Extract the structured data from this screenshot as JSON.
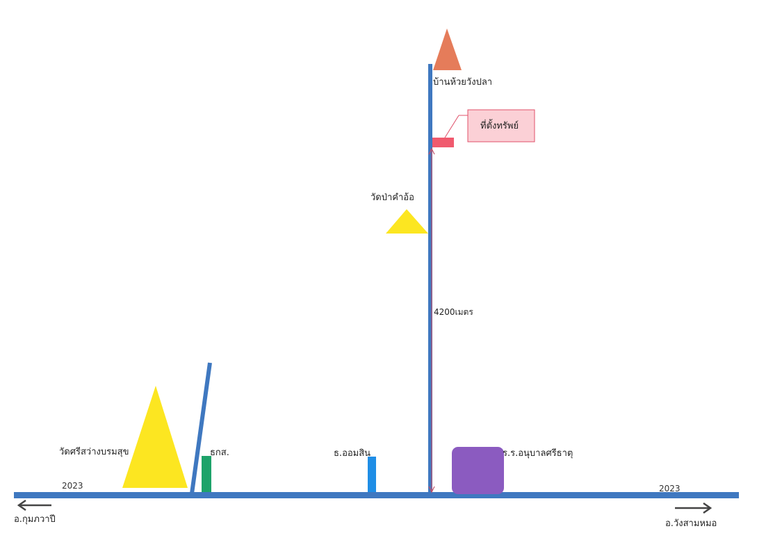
{
  "colors": {
    "road": "#3f78c0",
    "property_marker": "#f05a6e",
    "property_box_fill": "#fbd0d6",
    "property_box_border": "#e0506a",
    "temple": "#fce621",
    "village": "#e57c5a",
    "baac": "#1ea36a",
    "gsb": "#1f8ee6",
    "school": "#8b5bc0",
    "distance_line": "#c0506a",
    "arrow": "#444444"
  },
  "labels": {
    "village": "บ้านห้วยวังปลา",
    "property": "ที่ตั้งทรัพย์",
    "temple_top": "วัดป่าคำอ้อ",
    "distance": "4200เมตร",
    "temple_left": "วัดศรีสว่างบรมสุข",
    "baac": "ธกส.",
    "gsb": "ธ.ออมสิน",
    "school": "ร.ร.อนุบาลศรีธาตุ",
    "road_left": "2023",
    "road_right": "2023",
    "to_left": "อ.กุมภวาปี",
    "to_right": "อ.วังสามหมอ"
  },
  "icons": {
    "temple": "temple-triangle-icon",
    "village": "village-triangle-icon",
    "left_arrow": "arrow-left-icon",
    "right_arrow": "arrow-right-icon"
  }
}
